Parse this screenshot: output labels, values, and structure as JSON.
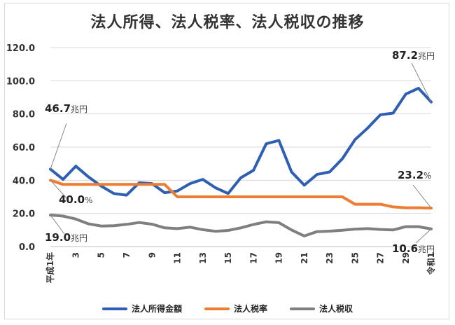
{
  "chart_data": {
    "type": "line",
    "title": "法人所得、法人税率、法人税収の推移",
    "ylim": [
      0,
      120
    ],
    "yticks": [
      "0.0",
      "20.0",
      "40.0",
      "60.0",
      "80.0",
      "100.0",
      "120.0"
    ],
    "x_tick_labels": [
      "平成1年",
      "3",
      "5",
      "7",
      "9",
      "11",
      "13",
      "15",
      "17",
      "19",
      "21",
      "23",
      "25",
      "27",
      "29",
      "令和1"
    ],
    "series": [
      {
        "name": "法人所得金額",
        "color": "#2e5fb3",
        "values": [
          46.7,
          40.5,
          48.5,
          42.0,
          36.5,
          32.0,
          31.0,
          38.5,
          38.0,
          32.5,
          33.5,
          38.0,
          40.5,
          35.5,
          32.0,
          41.5,
          46.0,
          62.0,
          64.0,
          45.0,
          37.0,
          43.5,
          45.0,
          53.0,
          64.5,
          71.5,
          79.5,
          80.5,
          92.0,
          95.5,
          87.2
        ]
      },
      {
        "name": "法人税率",
        "color": "#ed7d31",
        "values": [
          40.0,
          37.5,
          37.5,
          37.5,
          37.5,
          37.5,
          37.5,
          37.5,
          37.5,
          37.5,
          30.0,
          30.0,
          30.0,
          30.0,
          30.0,
          30.0,
          30.0,
          30.0,
          30.0,
          30.0,
          30.0,
          30.0,
          30.0,
          30.0,
          25.5,
          25.5,
          25.5,
          23.9,
          23.4,
          23.4,
          23.2
        ]
      },
      {
        "name": "法人税収",
        "color": "#7f7f7f",
        "values": [
          19.0,
          18.4,
          16.6,
          13.7,
          12.4,
          12.6,
          13.4,
          14.5,
          13.5,
          11.3,
          10.8,
          11.7,
          10.2,
          9.2,
          9.7,
          11.3,
          13.3,
          14.9,
          14.4,
          10.0,
          6.4,
          9.0,
          9.3,
          9.8,
          10.5,
          10.8,
          10.3,
          10.0,
          12.0,
          12.0,
          10.6
        ]
      }
    ],
    "annotations": [
      {
        "value": "46.7",
        "unit": "兆円",
        "series": 0,
        "point": "first"
      },
      {
        "value": "40.0",
        "unit": "%",
        "series": 1,
        "point": "first"
      },
      {
        "value": "19.0",
        "unit": "兆円",
        "series": 2,
        "point": "first"
      },
      {
        "value": "87.2",
        "unit": "兆円",
        "series": 0,
        "point": "last"
      },
      {
        "value": "23.2",
        "unit": "%",
        "series": 1,
        "point": "last"
      },
      {
        "value": "10.6",
        "unit": "兆円",
        "series": 2,
        "point": "last"
      }
    ]
  }
}
